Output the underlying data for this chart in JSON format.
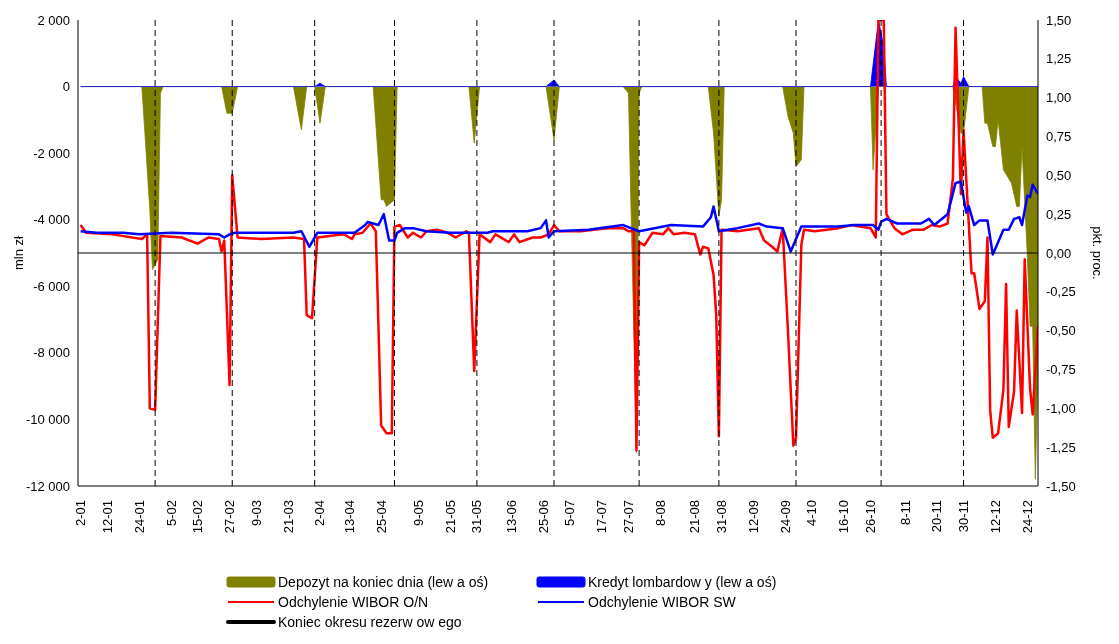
{
  "chart_data": {
    "type": "line",
    "ylabel": "mln zł",
    "y2label": "pkt. proc.",
    "xlim": [
      "--01-01",
      "--12-28"
    ],
    "xticks": [
      {
        "value": "--01-02",
        "label": "2-01"
      },
      {
        "value": "--01-12",
        "label": "12-01"
      },
      {
        "value": "--01-24",
        "label": "24-01"
      },
      {
        "value": "--02-05",
        "label": "5-02"
      },
      {
        "value": "--02-15",
        "label": "15-02"
      },
      {
        "value": "--02-27",
        "label": "27-02"
      },
      {
        "value": "--03-09",
        "label": "9-03"
      },
      {
        "value": "--03-21",
        "label": "21-03"
      },
      {
        "value": "--04-02",
        "label": "2-04"
      },
      {
        "value": "--04-13",
        "label": "13-04"
      },
      {
        "value": "--04-25",
        "label": "25-04"
      },
      {
        "value": "--05-09",
        "label": "9-05"
      },
      {
        "value": "--05-21",
        "label": "21-05"
      },
      {
        "value": "--05-31",
        "label": "31-05"
      },
      {
        "value": "--06-13",
        "label": "13-06"
      },
      {
        "value": "--06-25",
        "label": "25-06"
      },
      {
        "value": "--07-05",
        "label": "5-07"
      },
      {
        "value": "--07-17",
        "label": "17-07"
      },
      {
        "value": "--07-27",
        "label": "27-07"
      },
      {
        "value": "--08-08",
        "label": "8-08"
      },
      {
        "value": "--08-21",
        "label": "21-08"
      },
      {
        "value": "--08-31",
        "label": "31-08"
      },
      {
        "value": "--09-12",
        "label": "12-09"
      },
      {
        "value": "--09-24",
        "label": "24-09"
      },
      {
        "value": "--10-04",
        "label": "4-10"
      },
      {
        "value": "--10-16",
        "label": "16-10"
      },
      {
        "value": "--10-26",
        "label": "26-10"
      },
      {
        "value": "--11-08",
        "label": "8-11"
      },
      {
        "value": "--11-20",
        "label": "20-11"
      },
      {
        "value": "--11-30",
        "label": "30-11"
      },
      {
        "value": "--12-12",
        "label": "12-12"
      },
      {
        "value": "--12-24",
        "label": "24-12"
      }
    ],
    "ylim": [
      -12000,
      2000
    ],
    "yticks": [
      {
        "value": 2000,
        "label": "2 000"
      },
      0,
      {
        "value": -2000,
        "label": "-2 000"
      },
      {
        "value": -4000,
        "label": "-4 000"
      },
      {
        "value": -6000,
        "label": "-6 000"
      },
      {
        "value": -8000,
        "label": "-8 000"
      },
      {
        "value": -10000,
        "label": "-10 000"
      },
      {
        "value": -12000,
        "label": "-12 000"
      }
    ],
    "y2lim": [
      -1.5,
      1.5
    ],
    "y2ticks": [
      {
        "value": 1.5,
        "label": "1,50"
      },
      {
        "value": 1.25,
        "label": "1,25"
      },
      {
        "value": 1,
        "label": "1,00"
      },
      {
        "value": 0.75,
        "label": "0,75"
      },
      {
        "value": 0.5,
        "label": "0,50"
      },
      {
        "value": 0.25,
        "label": "0,25"
      },
      {
        "value": 0,
        "label": "0,00"
      },
      {
        "value": -0.25,
        "label": "-0,25"
      },
      {
        "value": -0.5,
        "label": "-0,50"
      },
      {
        "value": -0.75,
        "label": "-0,75"
      },
      {
        "value": -1,
        "label": "-1,00"
      },
      {
        "value": -1.25,
        "label": "-1,25"
      },
      {
        "value": -1.5,
        "label": "-1,50"
      }
    ],
    "grid": false,
    "legend": "bottom",
    "marker": "none",
    "line_style": "solid",
    "series": [
      {
        "name": "Depozyt na koniec dnia (lew a oś)",
        "type": "area",
        "color": "#808000",
        "x": [
          "--01-02",
          "--01-25",
          "--01-26",
          "--01-28",
          "--01-29",
          "--01-31",
          "--02-01",
          "--02-02",
          "--02-24",
          "--02-26",
          "--02-28",
          "--03-02",
          "--03-23",
          "--03-26",
          "--03-28",
          "--03-31",
          "--04-02",
          "--04-04",
          "--04-22",
          "--04-25",
          "--04-26",
          "--04-27",
          "--04-30",
          "--05-01",
          "--05-28",
          "--05-30",
          "--06-01",
          "--06-26",
          "--06-29",
          "--07-01",
          "--07-25",
          "--07-27",
          "--07-30",
          "--07-31",
          "--08-01",
          "--08-26",
          "--08-28",
          "--08-30",
          "--08-31",
          "--09-01",
          "--09-23",
          "--09-25",
          "--09-27",
          "--09-28",
          "--09-30",
          "--10-01",
          "--10-26",
          "--10-27",
          "--10-29",
          "--11-26",
          "--11-29",
          "--11-30",
          "--12-02",
          "--12-07",
          "--12-08",
          "--12-09",
          "--12-11",
          "--12-12",
          "--12-13",
          "--12-15",
          "--12-18",
          "--12-20",
          "--12-21",
          "--12-22",
          "--12-24",
          "--12-25",
          "--12-26",
          "--12-27",
          "--12-28"
        ],
        "values": [
          0,
          0,
          -1200,
          -3700,
          -5500,
          -5200,
          -200,
          0,
          0,
          -800,
          -800,
          0,
          0,
          -1300,
          0,
          0,
          -1100,
          0,
          0,
          -3400,
          -3400,
          -3600,
          -3400,
          0,
          0,
          -1700,
          0,
          0,
          -1600,
          0,
          0,
          -200,
          -11000,
          -200,
          0,
          0,
          -1400,
          -3900,
          -3400,
          0,
          0,
          -900,
          -1400,
          -2400,
          -2200,
          0,
          0,
          -2500,
          0,
          0,
          -1400,
          -1400,
          0,
          0,
          -1100,
          -1100,
          -1800,
          -1800,
          -1000,
          -2500,
          -2900,
          -3600,
          -3600,
          -1800,
          -5100,
          -7200,
          -7200,
          -11800,
          -8400
        ]
      },
      {
        "name": "Kredyt lombardow y (lew a oś)",
        "type": "area",
        "color": "#0000ff",
        "x": [
          "--01-02",
          "--03-31",
          "--04-02",
          "--04-04",
          "--06-26",
          "--06-29",
          "--07-01",
          "--10-26",
          "--10-29",
          "--10-31",
          "--11-01",
          "--11-26",
          "--11-27",
          "--11-29",
          "--11-30",
          "--12-02",
          "--12-28"
        ],
        "values": [
          0,
          0,
          100,
          0,
          0,
          200,
          0,
          0,
          2000,
          1200,
          0,
          0,
          300,
          100,
          300,
          0,
          0
        ]
      },
      {
        "name": "Odchylenie WIBOR O/N",
        "axis": "y2",
        "color": "#ff0000",
        "x": [
          "--01-02",
          "--01-04",
          "--01-14",
          "--01-25",
          "--01-27",
          "--01-28",
          "--01-30",
          "--02-01",
          "--02-09",
          "--02-15",
          "--02-19",
          "--02-23",
          "--02-24",
          "--02-25",
          "--02-27",
          "--02-28",
          "--03-02",
          "--03-11",
          "--03-23",
          "--03-27",
          "--03-28",
          "--03-30",
          "--04-01",
          "--04-11",
          "--04-14",
          "--04-15",
          "--04-18",
          "--04-21",
          "--04-23",
          "--04-25",
          "--04-27",
          "--04-29",
          "--04-30",
          "--05-02",
          "--05-05",
          "--05-07",
          "--05-10",
          "--05-12",
          "--05-16",
          "--05-20",
          "--05-23",
          "--05-27",
          "--05-28",
          "--05-30",
          "--06-01",
          "--06-05",
          "--06-07",
          "--06-12",
          "--06-14",
          "--06-16",
          "--06-21",
          "--06-24",
          "--06-27",
          "--06-29",
          "--07-01",
          "--07-09",
          "--07-19",
          "--07-25",
          "--07-27",
          "--07-29",
          "--07-30",
          "--07-31",
          "--08-02",
          "--08-05",
          "--08-09",
          "--08-11",
          "--08-13",
          "--08-17",
          "--08-21",
          "--08-23",
          "--08-24",
          "--08-26",
          "--08-28",
          "--08-29",
          "--08-30",
          "--08-31",
          "--09-06",
          "--09-14",
          "--09-16",
          "--09-19",
          "--09-21",
          "--09-23",
          "--09-25",
          "--09-27",
          "--09-28",
          "--09-30",
          "--10-01",
          "--10-05",
          "--10-14",
          "--10-19",
          "--10-22",
          "--10-26",
          "--10-28",
          "--10-29",
          "--10-31",
          "--11-01",
          "--11-04",
          "--11-07",
          "--11-11",
          "--11-15",
          "--11-18",
          "--11-21",
          "--11-24",
          "--11-26",
          "--11-27",
          "--11-29",
          "--11-30",
          "--12-03",
          "--12-04",
          "--12-06",
          "--12-08",
          "--12-09",
          "--12-10",
          "--12-11",
          "--12-13",
          "--12-15",
          "--12-16",
          "--12-17",
          "--12-19",
          "--12-20",
          "--12-22",
          "--12-23",
          "--12-25",
          "--12-26",
          "--12-28"
        ],
        "values": [
          0.18,
          0.13,
          0.12,
          0.09,
          0.12,
          -1.0,
          -1.01,
          0.11,
          0.1,
          0.06,
          0.1,
          0.09,
          0.01,
          0.08,
          -0.85,
          0.5,
          0.1,
          0.09,
          0.1,
          0.09,
          -0.4,
          -0.42,
          0.1,
          0.12,
          0.09,
          0.12,
          0.13,
          0.19,
          0.14,
          -1.11,
          -1.16,
          -1.16,
          0.17,
          0.18,
          0.1,
          0.13,
          0.1,
          0.14,
          0.15,
          0.13,
          0.1,
          0.14,
          0.13,
          -0.76,
          0.12,
          0.07,
          0.12,
          0.07,
          0.12,
          0.07,
          0.1,
          0.1,
          0.12,
          0.18,
          0.14,
          0.14,
          0.16,
          0.16,
          0.14,
          0.14,
          -1.27,
          0.07,
          0.05,
          0.13,
          0.12,
          0.16,
          0.12,
          0.13,
          0.12,
          -0.01,
          0.04,
          0.03,
          -0.14,
          -0.4,
          -1.18,
          0.15,
          0.14,
          0.16,
          0.08,
          0.04,
          0.01,
          0.16,
          -0.51,
          -1.24,
          -1.19,
          0.05,
          0.15,
          0.14,
          0.16,
          0.18,
          0.17,
          0.16,
          0.1,
          1.5,
          1.5,
          0.25,
          0.16,
          0.12,
          0.15,
          0.15,
          0.18,
          0.17,
          0.19,
          0.48,
          1.45,
          0.38,
          0.79,
          -0.13,
          -0.13,
          -0.36,
          -0.31,
          0.1,
          -1.01,
          -1.19,
          -1.16,
          -0.88,
          -0.2,
          -1.12,
          -0.89,
          -0.37,
          -1.03,
          -0.04,
          -0.87,
          -1.04,
          -0.47
        ]
      },
      {
        "name": "Odchylenie WIBOR SW",
        "axis": "y2",
        "color": "#0000ff",
        "x": [
          "--01-02",
          "--01-08",
          "--01-18",
          "--01-24",
          "--02-05",
          "--02-23",
          "--02-25",
          "--02-27",
          "--03-01",
          "--03-23",
          "--03-26",
          "--03-29",
          "--04-01",
          "--04-15",
          "--04-19",
          "--04-20",
          "--04-24",
          "--04-26",
          "--04-28",
          "--04-30",
          "--05-01",
          "--05-04",
          "--05-07",
          "--05-12",
          "--05-21",
          "--06-04",
          "--06-06",
          "--06-19",
          "--06-24",
          "--06-26",
          "--06-27",
          "--06-29",
          "--07-12",
          "--07-25",
          "--07-31",
          "--08-12",
          "--08-24",
          "--08-27",
          "--08-28",
          "--08-30",
          "--09-06",
          "--09-14",
          "--09-17",
          "--09-23",
          "--09-26",
          "--09-30",
          "--10-14",
          "--10-20",
          "--10-27",
          "--10-29",
          "--10-30",
          "--11-01",
          "--11-05",
          "--11-14",
          "--11-17",
          "--11-19",
          "--11-24",
          "--11-27",
          "--11-29",
          "--12-01",
          "--12-02",
          "--12-04",
          "--12-06",
          "--12-09",
          "--12-11",
          "--12-15",
          "--12-17",
          "--12-19",
          "--12-21",
          "--12-22",
          "--12-24",
          "--12-25",
          "--12-26",
          "--12-28"
        ],
        "values": [
          0.14,
          0.13,
          0.13,
          0.12,
          0.13,
          0.12,
          0.1,
          0.12,
          0.13,
          0.13,
          0.14,
          0.04,
          0.13,
          0.13,
          0.18,
          0.2,
          0.18,
          0.25,
          0.08,
          0.08,
          0.13,
          0.16,
          0.16,
          0.14,
          0.13,
          0.13,
          0.14,
          0.14,
          0.16,
          0.21,
          0.1,
          0.14,
          0.15,
          0.18,
          0.14,
          0.18,
          0.17,
          0.23,
          0.3,
          0.14,
          0.16,
          0.19,
          0.17,
          0.16,
          0.01,
          0.17,
          0.17,
          0.18,
          0.18,
          0.15,
          0.2,
          0.22,
          0.19,
          0.19,
          0.22,
          0.18,
          0.25,
          0.45,
          0.46,
          0.26,
          0.3,
          0.18,
          0.21,
          0.21,
          -0.01,
          0.15,
          0.15,
          0.22,
          0.23,
          0.18,
          0.37,
          0.36,
          0.44,
          0.38
        ]
      }
    ],
    "ref_lines": [
      {
        "axis": "y2",
        "value": 0,
        "color": "#000000",
        "line_style": "solid"
      },
      {
        "axis": "x",
        "value": "--01-30",
        "label": "Koniec okresu rezerw ow ego",
        "color": "#000000",
        "line_style": "dashed"
      },
      {
        "axis": "x",
        "value": "--02-28",
        "color": "#000000",
        "line_style": "dashed"
      },
      {
        "axis": "x",
        "value": "--03-31",
        "color": "#000000",
        "line_style": "dashed"
      },
      {
        "axis": "x",
        "value": "--04-30",
        "color": "#000000",
        "line_style": "dashed"
      },
      {
        "axis": "x",
        "value": "--05-31",
        "color": "#000000",
        "line_style": "dashed"
      },
      {
        "axis": "x",
        "value": "--06-29",
        "color": "#000000",
        "line_style": "dashed"
      },
      {
        "axis": "x",
        "value": "--07-31",
        "color": "#000000",
        "line_style": "dashed"
      },
      {
        "axis": "x",
        "value": "--08-30",
        "color": "#000000",
        "line_style": "dashed"
      },
      {
        "axis": "x",
        "value": "--09-28",
        "color": "#000000",
        "line_style": "dashed"
      },
      {
        "axis": "x",
        "value": "--10-30",
        "color": "#000000",
        "line_style": "dashed"
      },
      {
        "axis": "x",
        "value": "--11-30",
        "color": "#000000",
        "line_style": "dashed"
      }
    ]
  }
}
